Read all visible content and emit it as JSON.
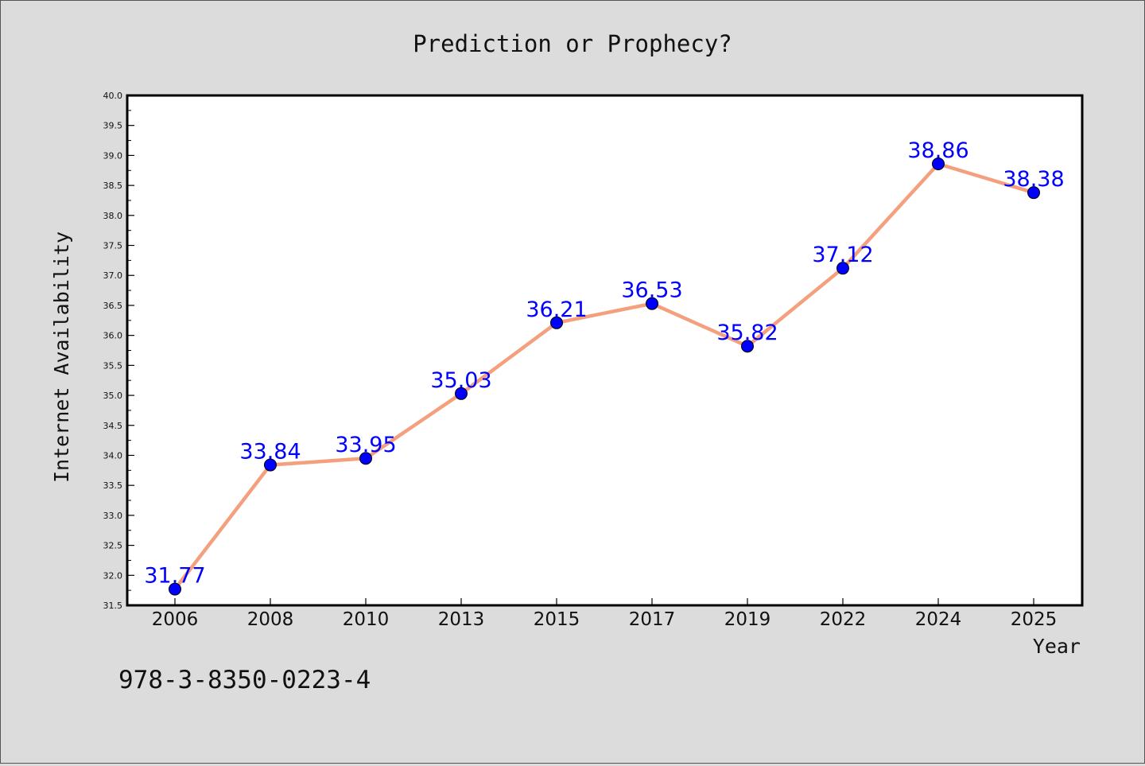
{
  "chart_data": {
    "type": "line",
    "title": "Prediction or Prophecy?",
    "xlabel": "Year",
    "ylabel": "Internet Availability",
    "categories": [
      "2006",
      "2008",
      "2010",
      "2013",
      "2015",
      "2017",
      "2019",
      "2022",
      "2024",
      "2025"
    ],
    "series": [
      {
        "values": [
          31.77,
          33.84,
          33.95,
          35.03,
          36.21,
          36.53,
          35.82,
          37.12,
          38.86,
          38.38
        ],
        "labels": [
          "31.77",
          "33.84",
          "33.95",
          "35.03",
          "36.21",
          "36.53",
          "35.82",
          "37.12",
          "38.86",
          "38.38"
        ]
      }
    ],
    "ylim": [
      31.5,
      40.0
    ],
    "yticks": [
      "31.5",
      "32.0",
      "32.5",
      "33.0",
      "33.5",
      "34.0",
      "34.5",
      "35.0",
      "35.5",
      "36.0",
      "36.5",
      "37.0",
      "37.5",
      "38.0",
      "38.5",
      "39.0",
      "39.5",
      "40.0"
    ],
    "grid": false,
    "line_color": "#f4a07e",
    "marker_color": "#0000ff",
    "label_color": "#0000ff"
  },
  "footer_code": "978-3-8350-0223-4"
}
